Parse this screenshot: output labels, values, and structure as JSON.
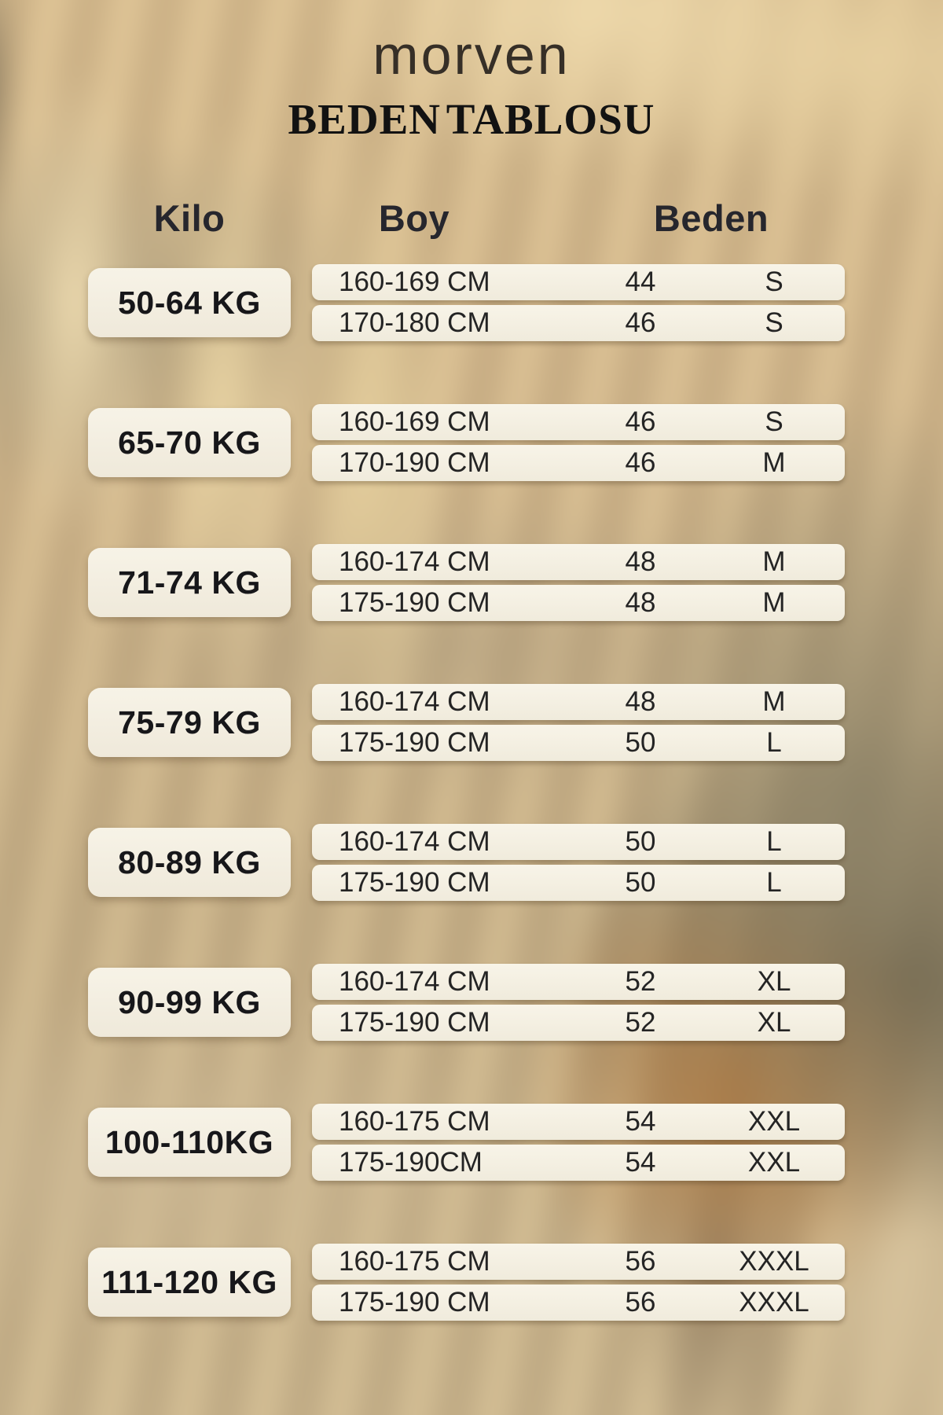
{
  "header": {
    "brand": "morven",
    "title": "BEDEN TABLOSU"
  },
  "table": {
    "columns": [
      "Kilo",
      "Boy",
      "Beden"
    ],
    "groups": [
      {
        "kilo": "50-64 KG",
        "rows": [
          {
            "boy": "160-169 CM",
            "beden_no": "44",
            "beden_size": "S"
          },
          {
            "boy": "170-180 CM",
            "beden_no": "46",
            "beden_size": "S"
          }
        ]
      },
      {
        "kilo": "65-70 KG",
        "rows": [
          {
            "boy": "160-169 CM",
            "beden_no": "46",
            "beden_size": "S"
          },
          {
            "boy": "170-190 CM",
            "beden_no": "46",
            "beden_size": "M"
          }
        ]
      },
      {
        "kilo": "71-74 KG",
        "rows": [
          {
            "boy": "160-174 CM",
            "beden_no": "48",
            "beden_size": "M"
          },
          {
            "boy": "175-190 CM",
            "beden_no": "48",
            "beden_size": "M"
          }
        ]
      },
      {
        "kilo": "75-79 KG",
        "rows": [
          {
            "boy": "160-174 CM",
            "beden_no": "48",
            "beden_size": "M"
          },
          {
            "boy": "175-190 CM",
            "beden_no": "50",
            "beden_size": "L"
          }
        ]
      },
      {
        "kilo": "80-89 KG",
        "rows": [
          {
            "boy": "160-174 CM",
            "beden_no": "50",
            "beden_size": "L"
          },
          {
            "boy": "175-190 CM",
            "beden_no": "50",
            "beden_size": "L"
          }
        ]
      },
      {
        "kilo": "90-99 KG",
        "rows": [
          {
            "boy": "160-174 CM",
            "beden_no": "52",
            "beden_size": "XL"
          },
          {
            "boy": "175-190 CM",
            "beden_no": "52",
            "beden_size": "XL"
          }
        ]
      },
      {
        "kilo": "100-110KG",
        "rows": [
          {
            "boy": "160-175 CM",
            "beden_no": "54",
            "beden_size": "XXL"
          },
          {
            "boy": "175-190CM",
            "beden_no": "54",
            "beden_size": "XXL"
          }
        ]
      },
      {
        "kilo": "111-120 KG",
        "rows": [
          {
            "boy": "160-175 CM",
            "beden_no": "56",
            "beden_size": "XXXL"
          },
          {
            "boy": "175-190 CM",
            "beden_no": "56",
            "beden_size": "XXXL"
          }
        ]
      }
    ]
  },
  "colors": {
    "background_tan": "#d3b88c",
    "box_cream": "#f5f1e5",
    "text_dark": "#222222",
    "header_text": "#26262d"
  }
}
